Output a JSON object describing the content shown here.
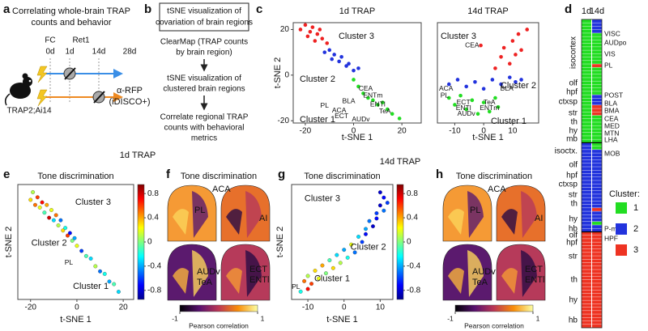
{
  "panel_letters": [
    "a",
    "b",
    "c",
    "d",
    "e",
    "f",
    "g",
    "h"
  ],
  "a": {
    "title_lines": [
      "Correlating whole-brain TRAP",
      "counts and behavior"
    ],
    "fc": "FC",
    "ret1": "Ret1",
    "days": [
      "0d",
      "1d",
      "14d",
      "28d"
    ],
    "readout_lines": [
      "α-RFP",
      "(iDISCO+)"
    ],
    "mouse": "TRAP2;Ai14"
  },
  "b": {
    "steps": [
      [
        "tSNE visualization of",
        "covariation of brain regions"
      ],
      [
        "ClearMap (TRAP counts",
        "by brain region)"
      ],
      [
        "tSNE visualization of",
        "clustered brain regions"
      ],
      [
        "Correlate regional TRAP",
        "counts with behavioral",
        "metrics"
      ]
    ]
  },
  "section_titles": [
    "1d TRAP",
    "14d TRAP"
  ],
  "d": {
    "columns": [
      {
        "name": "1d",
        "segments": [
          {
            "cluster": 1,
            "rows": 36
          },
          {
            "cluster": 2,
            "rows": 26
          },
          {
            "cluster": 3,
            "rows": 28
          }
        ]
      },
      {
        "name": "14d",
        "segments": [
          {
            "cluster": 2,
            "rows": 4
          },
          {
            "cluster": 1,
            "rows": 9
          },
          {
            "cluster": 3,
            "rows": 1
          },
          {
            "cluster": 1,
            "rows": 8
          },
          {
            "cluster": 2,
            "rows": 3
          },
          {
            "cluster": 3,
            "rows": 3
          },
          {
            "cluster": 1,
            "rows": 8
          },
          {
            "cluster": 1,
            "rows": 2
          },
          {
            "cluster": 2,
            "rows": 17
          },
          {
            "cluster": 3,
            "rows": 1
          },
          {
            "cluster": 2,
            "rows": 3
          },
          {
            "cluster": 1,
            "rows": 1
          },
          {
            "cluster": 2,
            "rows": 2
          },
          {
            "cluster": 3,
            "rows": 28
          }
        ]
      }
    ],
    "groups": [
      "isocortex",
      "olf",
      "hpf",
      "ctxsp",
      "str",
      "th",
      "hy",
      "mb",
      "isoctx.",
      "olf",
      "hpf",
      "ctxsp",
      "str",
      "th",
      "hy",
      "hb",
      "olf",
      "hpf",
      "str",
      "th",
      "hy",
      "hb"
    ],
    "regions": [
      "VISC",
      "AUDpo",
      "VIS",
      "PL",
      "POST",
      "BLA",
      "BMA",
      "CEA",
      "MED",
      "MTN",
      "LHA",
      "MOB",
      "P-mot",
      "HPF"
    ],
    "legend_title": "Cluster:",
    "legend": [
      {
        "value": 1,
        "color": "#22dd22"
      },
      {
        "value": 2,
        "color": "#2233dd"
      },
      {
        "value": 3,
        "color": "#ee3322"
      }
    ]
  },
  "chart_data": [
    {
      "type": "scatter",
      "title": "1d TRAP",
      "xlabel": "t-SNE 1",
      "ylabel": "t-SNE 2",
      "xlim": [
        -25,
        28
      ],
      "ylim": [
        -21,
        23
      ],
      "xticks": [
        -20,
        0,
        20
      ],
      "yticks": [
        -20,
        0,
        20
      ],
      "series": [
        {
          "name": "Cluster 3",
          "color": "#ee2222",
          "x": [
            -22,
            -20,
            -19,
            -18,
            -17,
            -16,
            -15,
            -14,
            -13,
            -11
          ],
          "values": [
            20,
            22,
            17,
            19,
            21,
            15,
            18,
            20,
            16,
            14
          ]
        },
        {
          "name": "Cluster 2",
          "color": "#2233dd",
          "x": [
            -12,
            -10,
            -9,
            -8,
            -6,
            -5,
            -3,
            -2,
            0,
            2
          ],
          "values": [
            10,
            11,
            7,
            9,
            6,
            8,
            4,
            5,
            2,
            3
          ]
        },
        {
          "name": "Cluster 1",
          "color": "#22dd22",
          "x": [
            0,
            2,
            4,
            6,
            8,
            10,
            12,
            14,
            16,
            19
          ],
          "values": [
            -2,
            -5,
            -8,
            -10,
            -11,
            -13,
            -12,
            -15,
            -17,
            -19
          ]
        }
      ],
      "annotations": [
        {
          "text": "CEA",
          "x": 5,
          "y": -6
        },
        {
          "text": "ENTm",
          "x": 8,
          "y": -9
        },
        {
          "text": "BLA",
          "x": -2,
          "y": -11.5
        },
        {
          "text": "ENTl",
          "x": 10,
          "y": -13
        },
        {
          "text": "PL",
          "x": -12,
          "y": -13.5
        },
        {
          "text": "ACA",
          "x": -6,
          "y": -15.5
        },
        {
          "text": "TeA",
          "x": 13,
          "y": -16
        },
        {
          "text": "ECT",
          "x": -5,
          "y": -18
        },
        {
          "text": "AUDv",
          "x": 3,
          "y": -19.5
        }
      ]
    },
    {
      "type": "scatter",
      "title": "14d TRAP",
      "xlabel": "t-SNE 1",
      "xlim": [
        -16,
        19
      ],
      "ylim": [
        -21,
        23
      ],
      "xticks": [
        -10,
        0,
        10
      ],
      "series": [
        {
          "name": "Cluster 3",
          "color": "#ee2222",
          "x": [
            -1,
            4,
            6,
            7,
            9,
            10,
            11,
            12,
            13,
            15
          ],
          "values": [
            13,
            3,
            8,
            12,
            5,
            15,
            9,
            18,
            11,
            20
          ]
        },
        {
          "name": "Cluster 2",
          "color": "#2233dd",
          "x": [
            -12,
            -9,
            -6,
            -3,
            0,
            3,
            6,
            9,
            11,
            13
          ],
          "values": [
            -4,
            -2,
            -5,
            -3,
            -6,
            -2,
            -4,
            -1,
            -3,
            -2
          ]
        },
        {
          "name": "Cluster 1",
          "color": "#22dd22",
          "x": [
            -12,
            -10,
            -8,
            -6,
            -4,
            -2,
            0,
            2,
            4,
            5
          ],
          "values": [
            -10,
            -13,
            -9,
            -15,
            -11,
            -17,
            -12,
            -16,
            -10,
            -14
          ]
        }
      ],
      "annotations": [
        {
          "text": "CEA",
          "x": -4,
          "y": 13
        },
        {
          "text": "BLA",
          "x": 8,
          "y": -6
        },
        {
          "text": "ACA",
          "x": -13,
          "y": -6
        },
        {
          "text": "PL",
          "x": -13.5,
          "y": -9
        },
        {
          "text": "ECT",
          "x": -7,
          "y": -12
        },
        {
          "text": "ENTl",
          "x": -7,
          "y": -14.5
        },
        {
          "text": "TeA",
          "x": 2,
          "y": -12
        },
        {
          "text": "ENTm",
          "x": 2,
          "y": -14.5
        },
        {
          "text": "AUDv",
          "x": -6,
          "y": -17
        }
      ]
    },
    {
      "type": "scatter",
      "title": "Tone discrimination",
      "xlabel": "t-SNE 1",
      "ylabel": "t-SNE 2",
      "xlim": [
        -25.5,
        24.5
      ],
      "ylim": [
        -22,
        23
      ],
      "xticks": [
        -20,
        0,
        20
      ],
      "series": [
        {
          "x": [
            -20,
            -19,
            -18,
            -17,
            -16,
            -15,
            -14,
            -13,
            -12,
            -11,
            -10,
            -9,
            -8,
            -7,
            -6,
            -5,
            -4,
            -3,
            -2,
            -1,
            0,
            2,
            4,
            6,
            8,
            10,
            12,
            14,
            16,
            18
          ],
          "values": [
            17,
            20,
            15,
            18,
            14,
            16,
            12,
            15,
            10,
            13,
            9,
            11,
            7,
            9,
            5,
            6,
            3,
            4,
            1,
            2,
            -1,
            -3,
            -5,
            -6,
            -9,
            -11,
            -12,
            -15,
            -16,
            -19
          ],
          "corr": [
            0.3,
            0.1,
            0.5,
            0.6,
            0.2,
            0.7,
            -0.1,
            0.4,
            0.8,
            0.2,
            -0.3,
            0.5,
            0.1,
            -0.5,
            0.3,
            -0.2,
            0.6,
            -0.7,
            0.0,
            -0.4,
            0.2,
            -0.6,
            -0.1,
            -0.3,
            0.1,
            -0.5,
            -0.2,
            -0.4,
            -0.1,
            -0.3
          ]
        }
      ],
      "annotations": [
        {
          "text": "Cluster 3",
          "x": 7,
          "y": 16,
          "color": "#ee2222"
        },
        {
          "text": "Cluster 2",
          "x": -12,
          "y": 0,
          "color": "#2233dd"
        },
        {
          "text": "Cluster 1",
          "x": 6,
          "y": -17,
          "color": "#22dd22"
        },
        {
          "text": "PL",
          "x": -3.5,
          "y": -7.7
        }
      ],
      "colorbar": {
        "clim": [
          -0.95,
          0.95
        ],
        "ticks": [
          0.8,
          0.4,
          0,
          -0.4,
          -0.8
        ]
      }
    },
    {
      "type": "scatter",
      "title": "Tone discrimination",
      "xlabel": "t-SNE 1",
      "ylabel": "t-SNE 2",
      "xlim": [
        -14.5,
        13.5
      ],
      "ylim": [
        -21,
        23
      ],
      "xticks": [
        -10,
        0,
        10
      ],
      "series": [
        {
          "x": [
            -12,
            -11,
            -10,
            -10,
            -9,
            -8,
            -7,
            -6,
            -5,
            -4,
            -3,
            -2,
            -1,
            0,
            1,
            2,
            3,
            4,
            5,
            6,
            6,
            7,
            8,
            9,
            9,
            10,
            11,
            11,
            12,
            10
          ],
          "values": [
            -18,
            -14,
            -17,
            -12,
            -15,
            -10,
            -13,
            -8,
            -11,
            -6,
            -9,
            -4,
            -7,
            -2,
            -5,
            0,
            -3,
            3,
            1,
            6,
            4,
            9,
            7,
            12,
            10,
            15,
            13,
            18,
            16,
            20
          ],
          "corr": [
            -0.2,
            0.5,
            0.7,
            0.1,
            0.6,
            0.3,
            0.2,
            0.4,
            0.0,
            -0.1,
            0.3,
            -0.3,
            0.1,
            -0.4,
            -0.2,
            0.2,
            -0.5,
            -0.3,
            -0.6,
            -0.4,
            -0.7,
            -0.5,
            -0.8,
            -0.6,
            -0.7,
            -0.8,
            -0.5,
            -0.7,
            -0.6,
            -0.8
          ]
        }
      ],
      "annotations": [
        {
          "text": "Cluster 3",
          "x": -6,
          "y": 17.5,
          "color": "#ee2222"
        },
        {
          "text": "Cluster 2",
          "x": 6.7,
          "y": -1,
          "color": "#2233dd"
        },
        {
          "text": "Cluster 1",
          "x": -3.3,
          "y": -13.2,
          "color": "#22dd22"
        },
        {
          "text": "PL",
          "x": -13.3,
          "y": -16.3
        }
      ],
      "colorbar": {
        "clim": [
          -0.95,
          0.95
        ],
        "ticks": [
          0.8,
          0.4,
          0,
          -0.4,
          -0.8
        ]
      }
    }
  ],
  "f": {
    "title": "Tone discrimination",
    "labels": [
      "ACA",
      "PL",
      "AI",
      "AUDv",
      "TeA",
      "ECT",
      "ENTl"
    ],
    "colorbar": {
      "clim": [
        -1,
        1
      ],
      "ticks": [
        -1,
        1
      ],
      "label": "Pearson correlation"
    }
  },
  "h": {
    "title": "Tone discrimination",
    "labels": [
      "ACA",
      "PL",
      "AI",
      "AUDv",
      "TeA",
      "ECT",
      "ENTl"
    ],
    "colorbar": {
      "clim": [
        -1,
        1
      ],
      "ticks": [
        -1,
        1
      ],
      "label": "Pearson correlation"
    }
  }
}
